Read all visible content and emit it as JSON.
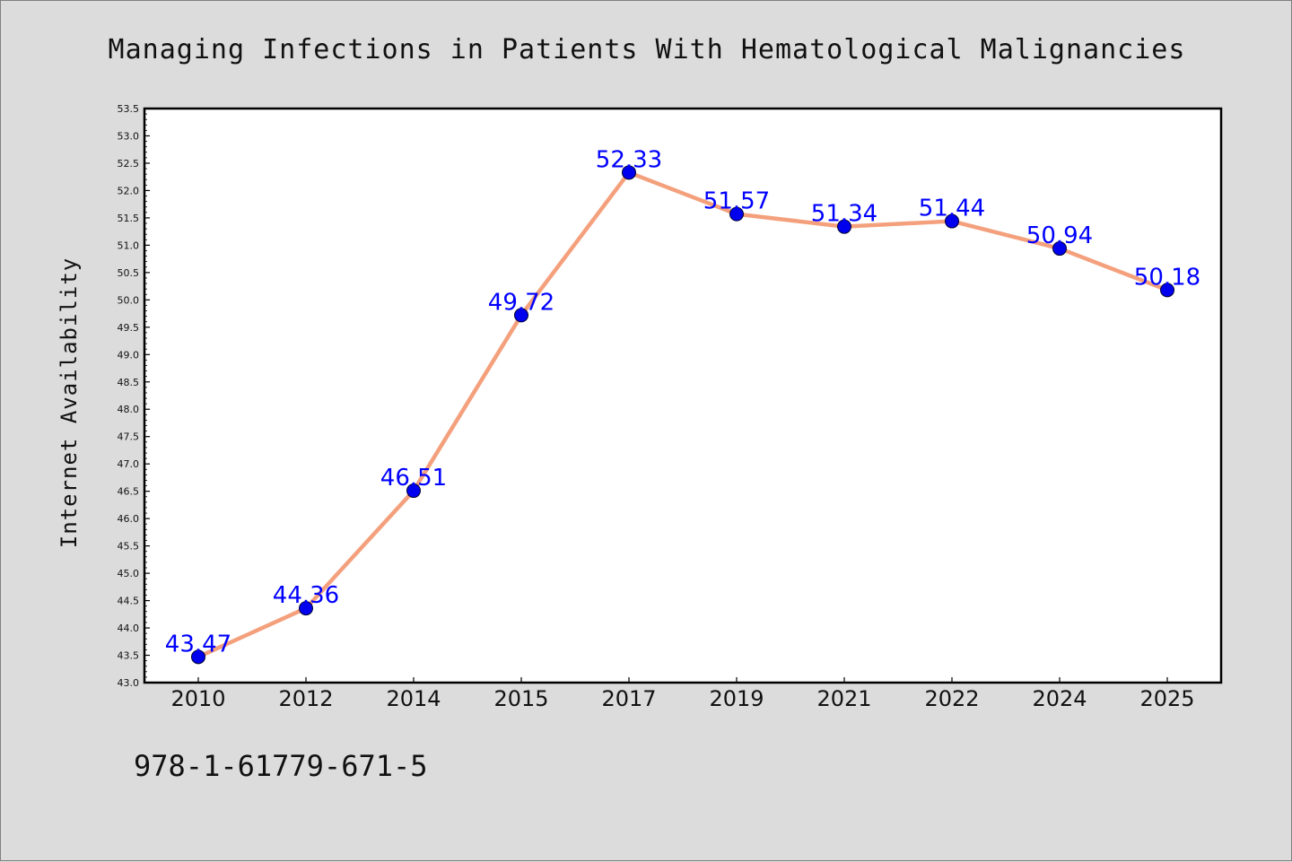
{
  "chart_data": {
    "type": "line",
    "title": "Managing Infections in Patients With Hematological Malignancies",
    "xlabel": "",
    "ylabel": "Internet Availability",
    "categories": [
      "2010",
      "2012",
      "2014",
      "2015",
      "2017",
      "2019",
      "2021",
      "2022",
      "2024",
      "2025"
    ],
    "series": [
      {
        "values": [
          43.47,
          44.36,
          46.51,
          49.72,
          52.33,
          51.57,
          51.34,
          51.44,
          50.94,
          50.18
        ],
        "data_labels": [
          "43.47",
          "44.36",
          "46.51",
          "49.72",
          "52.33",
          "51.57",
          "51.34",
          "51.44",
          "50.94",
          "50.18"
        ]
      }
    ],
    "ylim": [
      43.0,
      53.5
    ],
    "y_ticks": [
      "43.0",
      "43.5",
      "44.0",
      "44.5",
      "45.0",
      "45.5",
      "46.0",
      "46.5",
      "47.0",
      "47.5",
      "48.0",
      "48.5",
      "49.0",
      "49.5",
      "50.0",
      "50.5",
      "51.0",
      "51.5",
      "52.0",
      "52.5",
      "53.0",
      "53.5"
    ],
    "grid": false,
    "legend": "none",
    "colors": {
      "line": "#f4a07c",
      "marker": "#0000ee",
      "label": "#0000ff"
    }
  },
  "footnote": "978-1-61779-671-5"
}
